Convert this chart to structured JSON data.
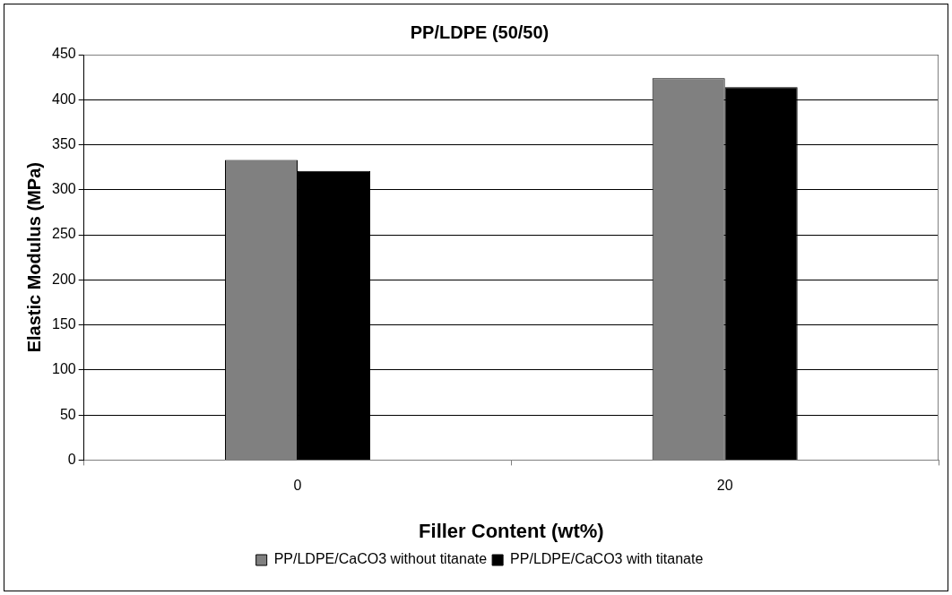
{
  "chart_data": {
    "type": "bar",
    "title": "PP/LDPE (50/50)",
    "xlabel": "Filler Content (wt%)",
    "ylabel": "Elastic Modulus (MPa)",
    "categories": [
      "0",
      "20"
    ],
    "series": [
      {
        "name": "PP/LDPE/CaCO3 without titanate",
        "color": "#808080",
        "values": [
          333,
          424
        ]
      },
      {
        "name": "PP/LDPE/CaCO3 with titanate",
        "color": "#000000",
        "values": [
          321,
          414
        ]
      }
    ],
    "ylim": [
      0,
      450
    ],
    "yticks": [
      0,
      50,
      100,
      150,
      200,
      250,
      300,
      350,
      400,
      450
    ],
    "grid": "y",
    "legend": "bottom"
  }
}
